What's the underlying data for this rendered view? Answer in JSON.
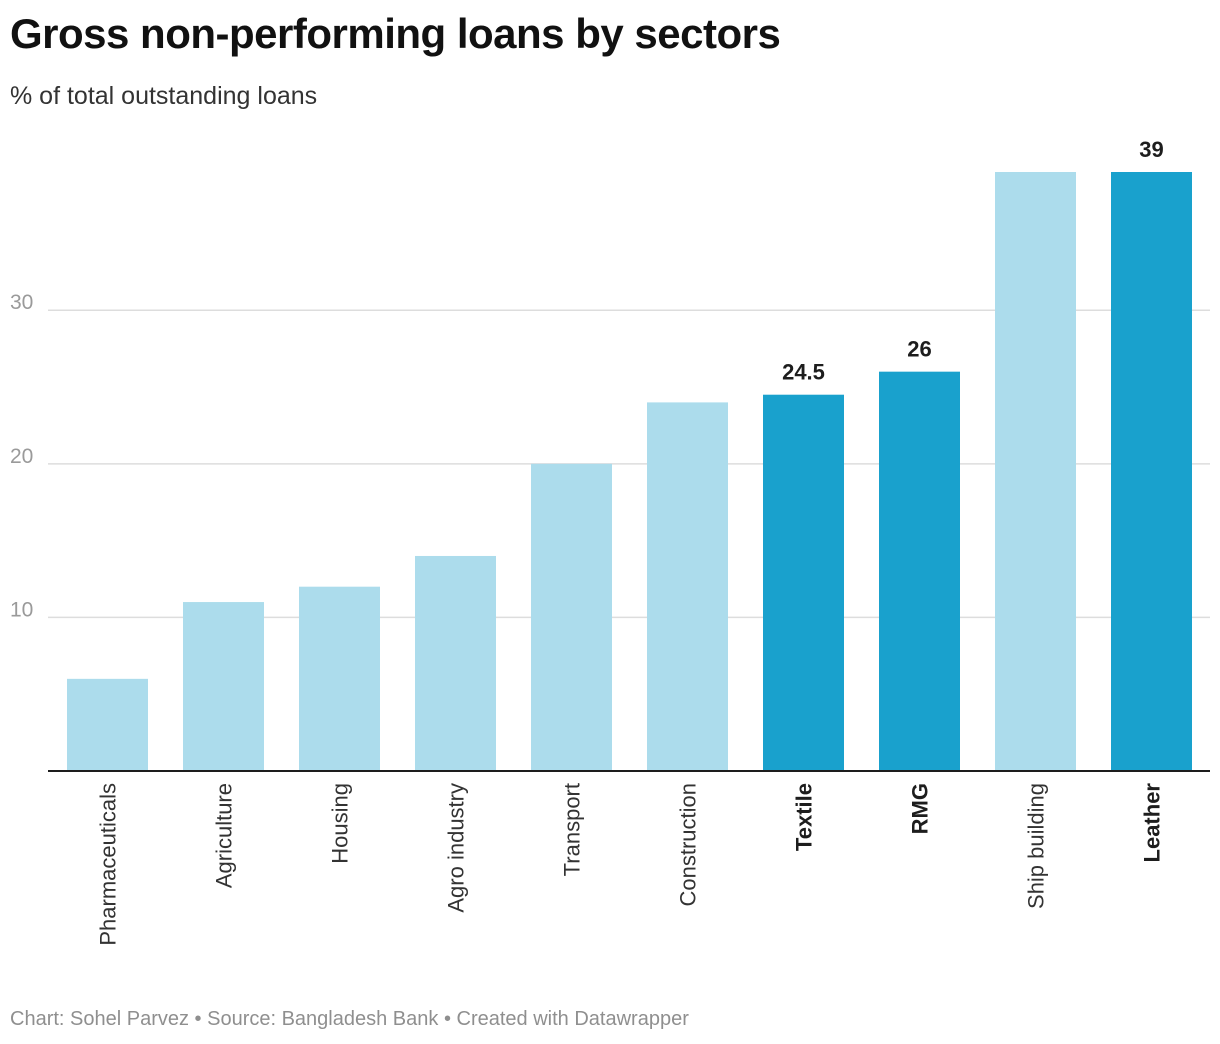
{
  "title": "Gross non-performing loans by sectors",
  "subtitle": "% of total outstanding loans",
  "footer": {
    "chart_credit": "Chart: Sohel Parvez",
    "separator": " • ",
    "source": "Source: Bangladesh Bank",
    "created_with": "Created with Datawrapper"
  },
  "colors": {
    "base": "#acdcec",
    "highlight": "#19a1cd",
    "grid": "#dddddd",
    "tick_text": "#9a9a9a",
    "axis": "#1d1d1d"
  },
  "chart_data": {
    "type": "bar",
    "categories": [
      "Pharmaceuticals",
      "Agriculture",
      "Housing",
      "Agro industry",
      "Transport",
      "Construction",
      "Textile",
      "RMG",
      "Ship building",
      "Leather"
    ],
    "values": [
      6,
      11,
      12,
      14,
      20,
      24,
      24.5,
      26,
      39,
      39
    ],
    "highlighted": [
      false,
      false,
      false,
      false,
      false,
      false,
      true,
      true,
      false,
      true
    ],
    "data_labels": [
      "",
      "",
      "",
      "",
      "",
      "",
      "24.5",
      "26",
      "",
      "39"
    ],
    "yticks": [
      10,
      20,
      30
    ],
    "ylim": [
      0,
      39
    ],
    "grid": true,
    "xlabel": "",
    "ylabel": ""
  }
}
